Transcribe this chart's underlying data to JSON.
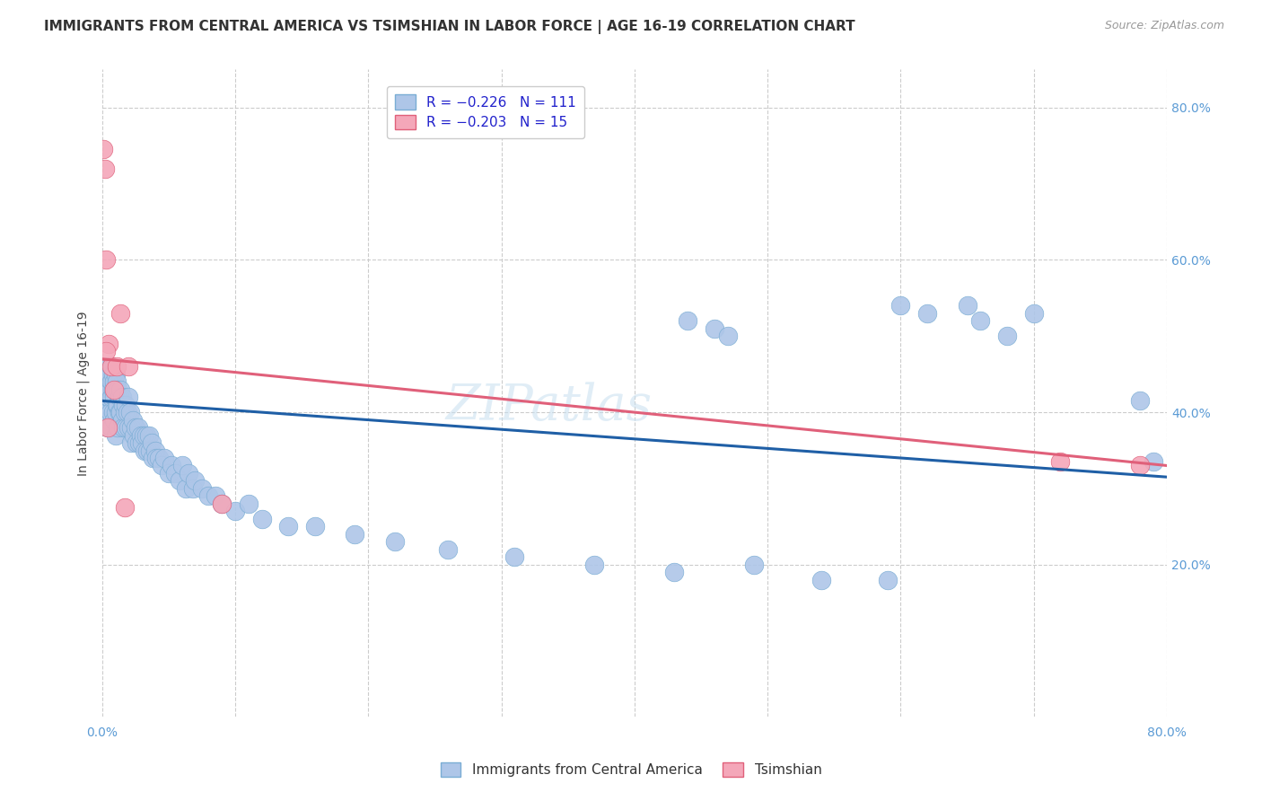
{
  "title": "IMMIGRANTS FROM CENTRAL AMERICA VS TSIMSHIAN IN LABOR FORCE | AGE 16-19 CORRELATION CHART",
  "source": "Source: ZipAtlas.com",
  "ylabel": "In Labor Force | Age 16-19",
  "x_min": 0.0,
  "x_max": 0.8,
  "y_min": 0.0,
  "y_max": 0.85,
  "y_ticks_right": [
    0.2,
    0.4,
    0.6,
    0.8
  ],
  "y_tick_labels_right": [
    "20.0%",
    "40.0%",
    "60.0%",
    "80.0%"
  ],
  "grid_color": "#cccccc",
  "background_color": "#ffffff",
  "watermark": "ZIPatlas",
  "series_blue": {
    "color": "#aec6e8",
    "edge_color": "#7aadd4",
    "line_color": "#1f5fa6",
    "trend_y_start": 0.415,
    "trend_y_end": 0.315
  },
  "series_pink": {
    "color": "#f4a7b9",
    "edge_color": "#e0607a",
    "line_color": "#e0607a",
    "trend_y_start": 0.47,
    "trend_y_end": 0.33
  },
  "title_fontsize": 11,
  "source_fontsize": 9,
  "axis_label_fontsize": 10,
  "tick_fontsize": 10,
  "legend_fontsize": 11,
  "blue_scatter_x": [
    0.001,
    0.002,
    0.002,
    0.003,
    0.003,
    0.003,
    0.004,
    0.004,
    0.004,
    0.005,
    0.005,
    0.005,
    0.005,
    0.006,
    0.006,
    0.006,
    0.007,
    0.007,
    0.007,
    0.007,
    0.008,
    0.008,
    0.008,
    0.009,
    0.009,
    0.009,
    0.01,
    0.01,
    0.01,
    0.01,
    0.011,
    0.011,
    0.012,
    0.012,
    0.012,
    0.013,
    0.013,
    0.014,
    0.014,
    0.015,
    0.015,
    0.016,
    0.016,
    0.017,
    0.018,
    0.018,
    0.019,
    0.02,
    0.02,
    0.021,
    0.022,
    0.022,
    0.023,
    0.024,
    0.025,
    0.026,
    0.027,
    0.028,
    0.029,
    0.03,
    0.031,
    0.032,
    0.033,
    0.034,
    0.035,
    0.036,
    0.037,
    0.038,
    0.04,
    0.041,
    0.043,
    0.045,
    0.047,
    0.05,
    0.052,
    0.055,
    0.058,
    0.06,
    0.063,
    0.065,
    0.068,
    0.07,
    0.075,
    0.08,
    0.085,
    0.09,
    0.1,
    0.11,
    0.12,
    0.14,
    0.16,
    0.19,
    0.22,
    0.26,
    0.31,
    0.37,
    0.43,
    0.49,
    0.54,
    0.59,
    0.44,
    0.46,
    0.47,
    0.6,
    0.62,
    0.65,
    0.66,
    0.68,
    0.7,
    0.78,
    0.79
  ],
  "blue_scatter_y": [
    0.44,
    0.43,
    0.41,
    0.45,
    0.42,
    0.4,
    0.44,
    0.42,
    0.38,
    0.46,
    0.44,
    0.42,
    0.39,
    0.45,
    0.43,
    0.4,
    0.46,
    0.44,
    0.42,
    0.38,
    0.45,
    0.43,
    0.4,
    0.44,
    0.42,
    0.39,
    0.45,
    0.43,
    0.4,
    0.37,
    0.44,
    0.41,
    0.43,
    0.41,
    0.38,
    0.42,
    0.4,
    0.43,
    0.4,
    0.42,
    0.39,
    0.41,
    0.38,
    0.4,
    0.41,
    0.38,
    0.4,
    0.42,
    0.38,
    0.4,
    0.38,
    0.36,
    0.39,
    0.37,
    0.38,
    0.36,
    0.38,
    0.36,
    0.37,
    0.36,
    0.37,
    0.35,
    0.37,
    0.35,
    0.37,
    0.35,
    0.36,
    0.34,
    0.35,
    0.34,
    0.34,
    0.33,
    0.34,
    0.32,
    0.33,
    0.32,
    0.31,
    0.33,
    0.3,
    0.32,
    0.3,
    0.31,
    0.3,
    0.29,
    0.29,
    0.28,
    0.27,
    0.28,
    0.26,
    0.25,
    0.25,
    0.24,
    0.23,
    0.22,
    0.21,
    0.2,
    0.19,
    0.2,
    0.18,
    0.18,
    0.52,
    0.51,
    0.5,
    0.54,
    0.53,
    0.54,
    0.52,
    0.5,
    0.53,
    0.415,
    0.335
  ],
  "pink_scatter_x": [
    0.001,
    0.002,
    0.003,
    0.005,
    0.007,
    0.009,
    0.011,
    0.014,
    0.017,
    0.02,
    0.003,
    0.004,
    0.72,
    0.78,
    0.09
  ],
  "pink_scatter_y": [
    0.745,
    0.72,
    0.6,
    0.49,
    0.46,
    0.43,
    0.46,
    0.53,
    0.275,
    0.46,
    0.48,
    0.38,
    0.335,
    0.33,
    0.28
  ]
}
